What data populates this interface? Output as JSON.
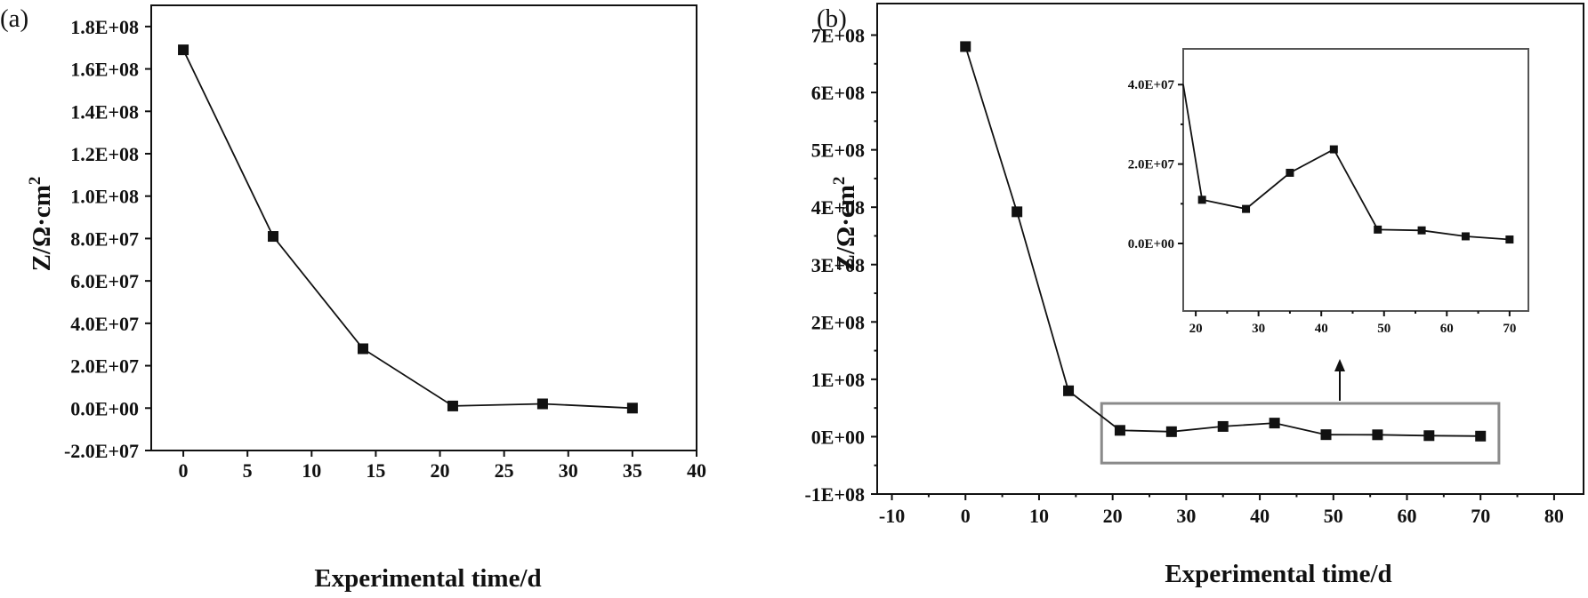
{
  "chart_data": [
    {
      "id": "a",
      "panel_label": "(a)",
      "type": "line",
      "title": "",
      "xlabel": "Experimental time/d",
      "ylabel": "Z/Ω·cm",
      "ylabel_superscript": "2",
      "xlim": [
        -2.5,
        40
      ],
      "ylim": [
        -20000000.0,
        190000000.0
      ],
      "xticks": [
        0,
        5,
        10,
        15,
        20,
        25,
        30,
        35,
        40
      ],
      "xtick_labels": [
        "0",
        "5",
        "10",
        "15",
        "20",
        "25",
        "30",
        "35",
        "40"
      ],
      "yticks": [
        -20000000.0,
        0,
        20000000.0,
        40000000.0,
        60000000.0,
        80000000.0,
        100000000.0,
        120000000.0,
        140000000.0,
        160000000.0,
        180000000.0
      ],
      "ytick_labels": [
        "-2.0E+07",
        "0.0E+00",
        "2.0E+07",
        "4.0E+07",
        "6.0E+07",
        "8.0E+07",
        "1.0E+08",
        "1.2E+08",
        "1.4E+08",
        "1.6E+08",
        "1.8E+08"
      ],
      "series": [
        {
          "name": "Z",
          "marker": "square",
          "x": [
            0,
            7,
            14,
            21,
            28,
            35
          ],
          "y": [
            169000000.0,
            81000000.0,
            28000000.0,
            1000000.0,
            2000000.0,
            0
          ]
        }
      ]
    },
    {
      "id": "b",
      "panel_label": "(b)",
      "type": "line",
      "title": "",
      "xlabel": "Experimental time/d",
      "ylabel": "Z/Ω·cm",
      "ylabel_superscript": "2",
      "xlim": [
        -12,
        84
      ],
      "ylim": [
        -100000000.0,
        755000000.0
      ],
      "xticks": [
        -10,
        0,
        10,
        20,
        30,
        40,
        50,
        60,
        70,
        80
      ],
      "xtick_labels": [
        "-10",
        "0",
        "10",
        "20",
        "30",
        "40",
        "50",
        "60",
        "70",
        "80"
      ],
      "yticks": [
        -100000000.0,
        0,
        100000000.0,
        200000000.0,
        300000000.0,
        400000000.0,
        500000000.0,
        600000000.0,
        700000000.0
      ],
      "ytick_labels": [
        "-1E+08",
        "0E+00",
        "1E+08",
        "2E+08",
        "3E+08",
        "4E+08",
        "5E+08",
        "6E+08",
        "7E+08"
      ],
      "highlight_box": {
        "x_range": [
          18.5,
          72.5
        ],
        "y_range": [
          -46000000.0,
          58000000.0
        ]
      },
      "series": [
        {
          "name": "Z",
          "marker": "square",
          "x": [
            0,
            7,
            14,
            21,
            28,
            35,
            42,
            49,
            56,
            63,
            70
          ],
          "y": [
            680000000.0,
            392000000.0,
            80000000.0,
            11000000.0,
            8700000.0,
            17800000.0,
            23700000.0,
            3500000.0,
            3300000.0,
            1800000.0,
            1000000.0
          ]
        }
      ]
    },
    {
      "id": "b-inset",
      "panel_label": "",
      "type": "line",
      "title": "",
      "xlabel": "",
      "ylabel": "",
      "xlim": [
        18,
        73
      ],
      "ylim": [
        -17000000.0,
        49000000.0
      ],
      "xticks": [
        20,
        30,
        40,
        50,
        60,
        70
      ],
      "xtick_labels": [
        "20",
        "30",
        "40",
        "50",
        "60",
        "70"
      ],
      "yticks": [
        0,
        20000000.0,
        40000000.0
      ],
      "ytick_labels": [
        "0.0E+00",
        "2.0E+07",
        "4.0E+07"
      ],
      "series": [
        {
          "name": "Z",
          "marker": "square",
          "x": [
            18,
            21,
            28,
            35,
            42,
            49,
            56,
            63,
            70
          ],
          "y": [
            40000000.0,
            11000000.0,
            8700000.0,
            17800000.0,
            23700000.0,
            3500000.0,
            3300000.0,
            1800000.0,
            1000000.0
          ],
          "marker_from_index": 1
        }
      ]
    }
  ]
}
